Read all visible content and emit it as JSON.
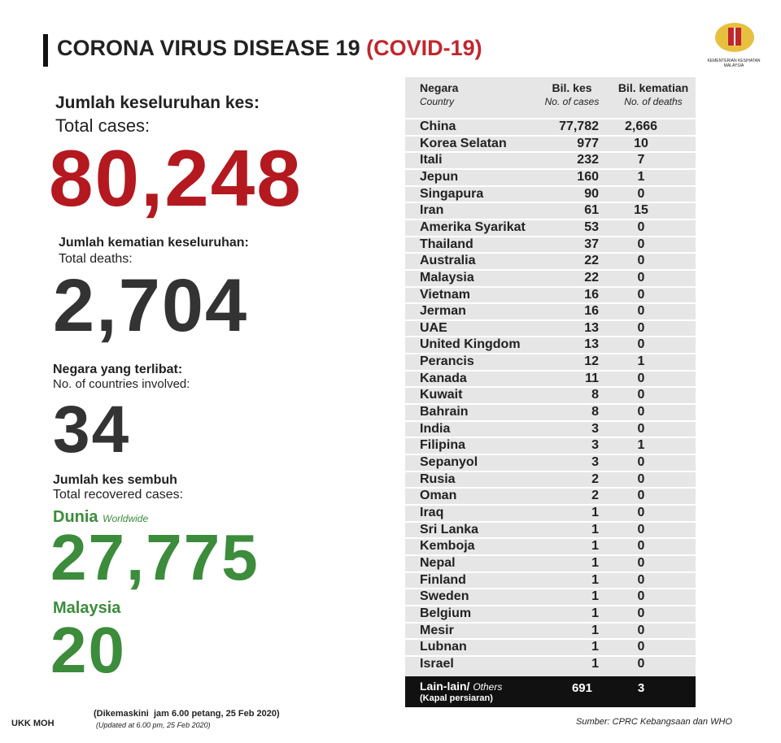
{
  "header": {
    "title": "CORONA VIRUS DISEASE 19",
    "title_highlight": "(COVID-19)",
    "logo_text": "KEMENTERIAN KESIHATAN MALAYSIA"
  },
  "summary": {
    "total_cases": {
      "label_ms": "Jumlah keseluruhan kes:",
      "label_en": "Total cases:",
      "value": "80,248"
    },
    "total_deaths": {
      "label_ms": "Jumlah kematian keseluruhan:",
      "label_en": "Total deaths:",
      "value": "2,704"
    },
    "countries": {
      "label_ms": "Negara yang terlibat:",
      "label_en": "No. of countries involved:",
      "value": "34"
    },
    "recovered": {
      "label_ms": "Jumlah kes sembuh",
      "label_en": "Total recovered cases:",
      "world_label_ms": "Dunia",
      "world_label_en": "Worldwide",
      "world_value": "27,775",
      "malaysia_label": "Malaysia",
      "malaysia_value": "20"
    }
  },
  "table": {
    "headers": [
      {
        "ms": "Negara",
        "en": "Country"
      },
      {
        "ms": "Bil. kes",
        "en": "No. of cases"
      },
      {
        "ms": "Bil. kematian",
        "en": "No. of deaths"
      }
    ],
    "rows": [
      [
        "China",
        "77,782",
        "2,666"
      ],
      [
        "Korea Selatan",
        "977",
        "10"
      ],
      [
        "Itali",
        "232",
        "7"
      ],
      [
        "Jepun",
        "160",
        "1"
      ],
      [
        "Singapura",
        "90",
        "0"
      ],
      [
        "Iran",
        "61",
        "15"
      ],
      [
        "Amerika Syarikat",
        "53",
        "0"
      ],
      [
        "Thailand",
        "37",
        "0"
      ],
      [
        "Australia",
        "22",
        "0"
      ],
      [
        "Malaysia",
        "22",
        "0"
      ],
      [
        "Vietnam",
        "16",
        "0"
      ],
      [
        "Jerman",
        "16",
        "0"
      ],
      [
        "UAE",
        "13",
        "0"
      ],
      [
        "United Kingdom",
        "13",
        "0"
      ],
      [
        "Perancis",
        "12",
        "1"
      ],
      [
        "Kanada",
        "11",
        "0"
      ],
      [
        "Kuwait",
        "8",
        "0"
      ],
      [
        "Bahrain",
        "8",
        "0"
      ],
      [
        "India",
        "3",
        "0"
      ],
      [
        "Filipina",
        "3",
        "1"
      ],
      [
        "Sepanyol",
        "3",
        "0"
      ],
      [
        "Rusia",
        "2",
        "0"
      ],
      [
        "Oman",
        "2",
        "0"
      ],
      [
        "Iraq",
        "1",
        "0"
      ],
      [
        "Sri Lanka",
        "1",
        "0"
      ],
      [
        "Kemboja",
        "1",
        "0"
      ],
      [
        "Nepal",
        "1",
        "0"
      ],
      [
        "Finland",
        "1",
        "0"
      ],
      [
        "Sweden",
        "1",
        "0"
      ],
      [
        "Belgium",
        "1",
        "0"
      ],
      [
        "Mesir",
        "1",
        "0"
      ],
      [
        "Lubnan",
        "1",
        "0"
      ],
      [
        "Israel",
        "1",
        "0"
      ]
    ],
    "others": {
      "label_ms": "Lain-lain/",
      "label_en": "Others",
      "note": "(Kapal persiaran)",
      "cases": "691",
      "deaths": "3"
    }
  },
  "footer": {
    "left": "UKK MOH",
    "updated_ms": "(Dikemaskini  jam 6.00 petang, 25 Feb 2020)",
    "updated_en": "(Updated at 6.00 pm, 25 Feb 2020)",
    "source": "Sumber: CPRC Kebangsaan dan WHO"
  }
}
